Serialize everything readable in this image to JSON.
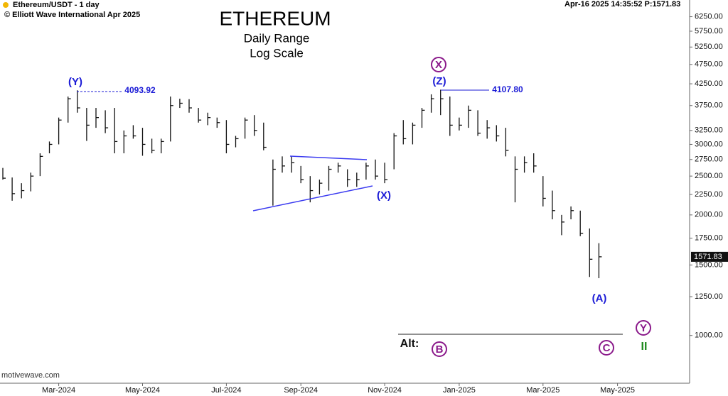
{
  "chart_data": {
    "type": "ohlc",
    "title": "ETHEREUM",
    "subtitle": [
      "Daily Range",
      "Log Scale"
    ],
    "symbol": "Ethereum/USDT - 1 day",
    "copyright": "© Elliott Wave International Apr 2025",
    "status": "Apr-16 2025  14:35:52  P:1571.83",
    "watermark": "motivewave.com",
    "log_scale": true,
    "color": "#111111",
    "last_price": 1571.83,
    "last_price_label": "1571.83",
    "categories": [
      null,
      null,
      null,
      null,
      null,
      null,
      "Mar-2024",
      null,
      null,
      null,
      null,
      null,
      null,
      null,
      null,
      "May-2024",
      null,
      null,
      null,
      null,
      null,
      null,
      null,
      null,
      "Jul-2024",
      null,
      null,
      null,
      null,
      null,
      null,
      null,
      "Sep-2024",
      null,
      null,
      null,
      null,
      null,
      null,
      null,
      null,
      "Nov-2024",
      null,
      null,
      null,
      null,
      null,
      null,
      null,
      "Jan-2025",
      null,
      null,
      null,
      null,
      null,
      null,
      null,
      null,
      "Mar-2025",
      null,
      null,
      null,
      null,
      null,
      null,
      null,
      "May-2025",
      null,
      null,
      null,
      null,
      null,
      null,
      null
    ],
    "series": [
      {
        "name": "high",
        "values": [
          2620,
          2480,
          2400,
          2550,
          2850,
          3050,
          3500,
          3950,
          4094,
          3700,
          3700,
          3650,
          3700,
          3250,
          3350,
          3300,
          3100,
          3100,
          3950,
          3900,
          3890,
          3700,
          3600,
          3500,
          3450,
          3150,
          3500,
          3550,
          3400,
          2750,
          2800,
          2800,
          2650,
          2500,
          2450,
          2650,
          2700,
          2600,
          2550,
          2700,
          2750,
          2700,
          3200,
          3450,
          3400,
          3700,
          4000,
          4108,
          3950,
          3500,
          3750,
          3650,
          3450,
          3350,
          3300,
          2800,
          2800,
          2850,
          2500,
          2300,
          2000,
          2100,
          2050,
          1850,
          1700,
          null,
          null,
          null,
          null,
          null,
          null,
          null,
          null,
          null
        ]
      },
      {
        "name": "low",
        "values": [
          2450,
          2170,
          2200,
          2290,
          2500,
          2850,
          3000,
          3400,
          3600,
          3060,
          3300,
          3200,
          2850,
          2850,
          3100,
          2810,
          2850,
          2850,
          3050,
          3700,
          3600,
          3400,
          3350,
          3300,
          2850,
          2950,
          3100,
          3150,
          2900,
          2110,
          2550,
          2550,
          2400,
          2150,
          2250,
          2300,
          2550,
          2350,
          2350,
          2450,
          2450,
          2400,
          2600,
          3000,
          3000,
          3300,
          3600,
          3550,
          3150,
          3250,
          3300,
          3150,
          3100,
          3050,
          2800,
          2150,
          2550,
          2550,
          2100,
          1950,
          1780,
          1950,
          1770,
          1400,
          1390,
          null,
          null,
          null,
          null,
          null,
          null,
          null,
          null,
          null
        ]
      },
      {
        "name": "close",
        "values": [
          2470,
          2260,
          2300,
          2500,
          2800,
          3000,
          3450,
          3900,
          3700,
          3350,
          3500,
          3300,
          3050,
          3150,
          3150,
          3000,
          2900,
          3050,
          3750,
          3800,
          3700,
          3450,
          3500,
          3400,
          3000,
          3100,
          3450,
          3250,
          2950,
          2600,
          2650,
          2700,
          2450,
          2300,
          2400,
          2600,
          2650,
          2450,
          2450,
          2650,
          2500,
          2450,
          3150,
          3100,
          3350,
          3650,
          3900,
          3900,
          3350,
          3350,
          3650,
          3200,
          3300,
          3150,
          2900,
          2600,
          2700,
          2650,
          2200,
          2050,
          1920,
          2050,
          1800,
          1550,
          1572,
          null,
          null,
          null,
          null,
          null,
          null,
          null,
          null,
          null
        ]
      }
    ],
    "ylim": [
      760,
      6880
    ],
    "yticks": [
      {
        "value": 1000,
        "label": "1000.00"
      },
      {
        "value": 1250,
        "label": "1250.00"
      },
      {
        "value": 1500,
        "label": "1500.00"
      },
      {
        "value": 1750,
        "label": "1750.00"
      },
      {
        "value": 2000,
        "label": "2000.00"
      },
      {
        "value": 2250,
        "label": "2250.00"
      },
      {
        "value": 2500,
        "label": "2500.00"
      },
      {
        "value": 2750,
        "label": "2750.00"
      },
      {
        "value": 3000,
        "label": "3000.00"
      },
      {
        "value": 3250,
        "label": "3250.00"
      },
      {
        "value": 3750,
        "label": "3750.00"
      },
      {
        "value": 4250,
        "label": "4250.00"
      },
      {
        "value": 4750,
        "label": "4750.00"
      },
      {
        "value": 5250,
        "label": "5250.00"
      },
      {
        "value": 5750,
        "label": "5750.00"
      },
      {
        "value": 6250,
        "label": "6250.00"
      }
    ],
    "annotations": [
      "(Y)",
      "4093.92",
      "(Z)",
      "X",
      "4107.80",
      "(X)",
      "(A)",
      "Alt:",
      "B",
      "C",
      "Y",
      "II"
    ]
  }
}
